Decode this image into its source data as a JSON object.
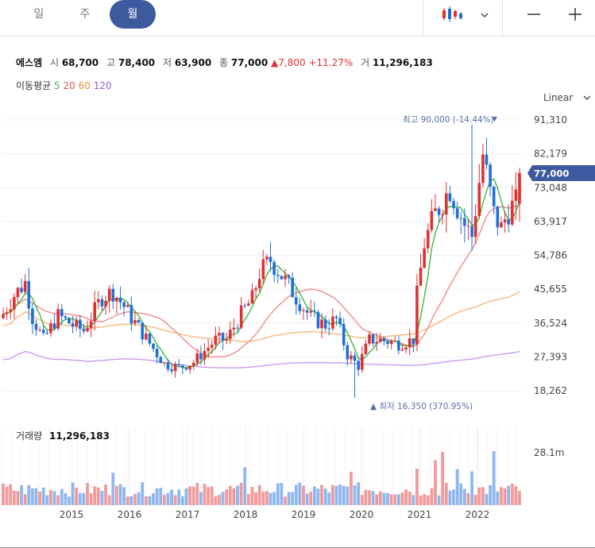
{
  "tabs": {
    "day": "일",
    "week": "주",
    "month": "월"
  },
  "header": {
    "name": "에스엠",
    "open_label": "시",
    "open": "68,700",
    "high_label": "고",
    "high": "78,400",
    "low_label": "저",
    "low": "63,900",
    "close_label": "종",
    "close": "77,000",
    "change": "▲7,800",
    "change_pct": "+11.27%",
    "volume_label": "거",
    "volume": "11,296,183"
  },
  "ma_legend": {
    "label": "이동평균",
    "p5": "5",
    "p20": "20",
    "p60": "60",
    "p120": "120"
  },
  "scale_label": "Linear",
  "volume_panel": {
    "label": "거래량",
    "value": "11,296,183"
  },
  "annotations": {
    "high": "최고 90,000 (-14.44%)",
    "low": "▲ 최저 16,350 (370.95%)",
    "current_price": "77,000"
  },
  "colors": {
    "up": "#e03131",
    "down": "#1f6fd6",
    "ma5": "#41b641",
    "ma20": "#f08c8c",
    "ma60": "#f5b97a",
    "ma120": "#c79cf0",
    "accent": "#3e5a9e"
  },
  "chart_data": {
    "type": "candlestick",
    "price_ticks": [
      91310,
      82179,
      73048,
      63917,
      54786,
      45655,
      36524,
      27393,
      18262
    ],
    "volume_ticks": [
      "28.1m"
    ],
    "x_ticks": [
      "2015",
      "2016",
      "2017",
      "2018",
      "2019",
      "2020",
      "2021",
      "2022"
    ],
    "ylim": [
      18262,
      91310
    ],
    "latest": {
      "open": 68700,
      "high": 78400,
      "low": 63900,
      "close": 77000,
      "volume": 11296183
    },
    "all_time_high": 90000,
    "all_time_low": 16350
  }
}
